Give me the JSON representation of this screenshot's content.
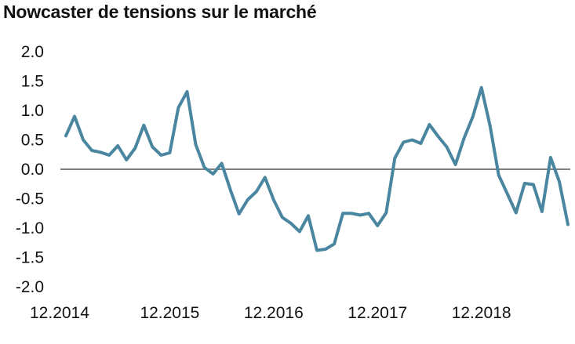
{
  "chart_data": {
    "type": "line",
    "title": "Nowcaster de tensions sur le marché",
    "xlabel": "",
    "ylabel": "",
    "ylim": [
      -2.0,
      2.0
    ],
    "y_ticks": [
      "2.0",
      "1.5",
      "1.0",
      "0.5",
      "0.0",
      "-0.5",
      "-1.0",
      "-1.5",
      "-2.0"
    ],
    "x_tick_labels": [
      "12.2014",
      "12.2015",
      "12.2016",
      "12.2017",
      "12.2018"
    ],
    "x_tick_index": [
      0,
      12,
      24,
      36,
      48
    ],
    "zero_line": true,
    "grid": false,
    "line_color": "#4a86a0",
    "zero_line_color": "#7f7f7f",
    "series": [
      {
        "values": [
          0.57,
          0.9,
          0.5,
          0.32,
          0.29,
          0.24,
          0.4,
          0.16,
          0.36,
          0.75,
          0.38,
          0.24,
          0.28,
          1.05,
          1.32,
          0.42,
          0.03,
          -0.08,
          0.1,
          -0.35,
          -0.76,
          -0.52,
          -0.38,
          -0.14,
          -0.52,
          -0.82,
          -0.92,
          -1.06,
          -0.79,
          -1.38,
          -1.36,
          -1.27,
          -0.75,
          -0.75,
          -0.78,
          -0.75,
          -0.96,
          -0.74,
          0.19,
          0.46,
          0.5,
          0.44,
          0.76,
          0.56,
          0.38,
          0.08,
          0.53,
          0.89,
          1.39,
          0.74,
          -0.1,
          -0.42,
          -0.74,
          -0.24,
          -0.26,
          -0.72,
          0.2,
          -0.21,
          -0.94
        ]
      }
    ]
  }
}
